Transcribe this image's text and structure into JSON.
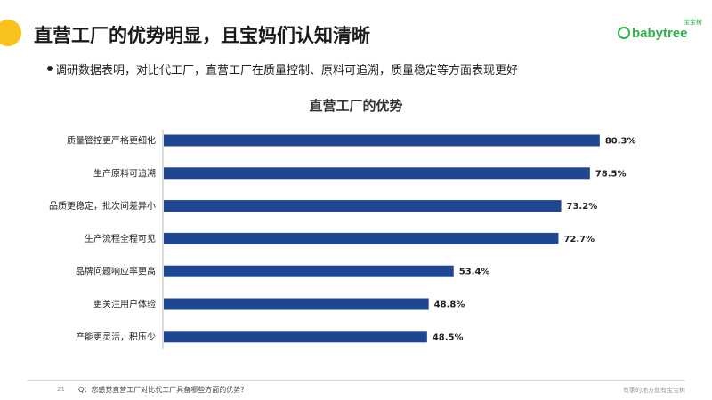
{
  "header": {
    "title": "直营工厂的优势明显，且宝妈们认知清晰",
    "logo_text": "babytree",
    "logo_cn": "宝宝树",
    "logo_icon": "babytree-logo-icon"
  },
  "bullet": {
    "text": "调研数据表明，对比代工厂，直营工厂在质量控制、原料可追溯，质量稳定等方面表现更好"
  },
  "chart_data": {
    "type": "bar",
    "orientation": "horizontal",
    "title": "直营工厂的优势",
    "categories": [
      "质量管控更严格更细化",
      "生产原料可追溯",
      "品质更稳定，批次间差异小",
      "生产流程全程可见",
      "品牌问题响应率更高",
      "更关注用户体验",
      "产能更灵活，积压少"
    ],
    "values": [
      80.3,
      78.5,
      73.2,
      72.7,
      53.4,
      48.8,
      48.5
    ],
    "value_labels": [
      "80.3%",
      "78.5%",
      "73.2%",
      "72.7%",
      "53.4%",
      "48.8%",
      "48.5%"
    ],
    "unit": "%",
    "xlim": [
      0,
      100
    ],
    "grid": false,
    "bar_color": "#1f4690"
  },
  "footer": {
    "page_number": "21",
    "question": "Q：您感觉直营工厂对比代工厂具备哪些方面的优势?",
    "slogan": "有家的地方就有宝宝树"
  }
}
